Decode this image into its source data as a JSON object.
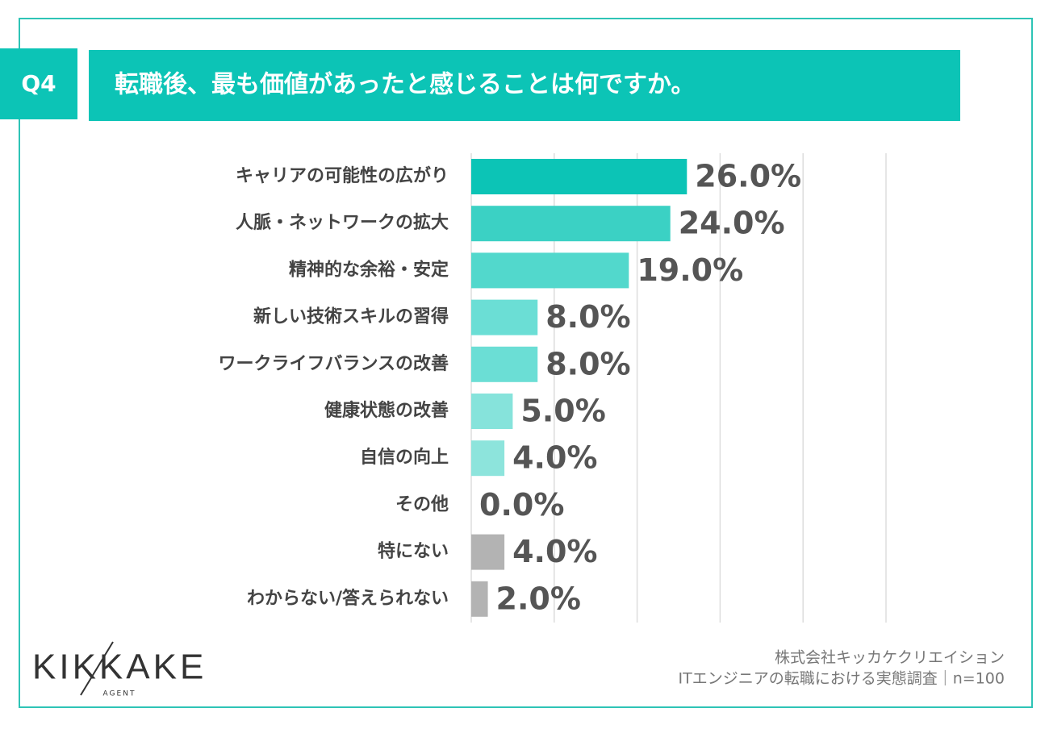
{
  "header": {
    "badge": "Q4",
    "title": "転職後、最も価値があったと感じることは何ですか。"
  },
  "chart_data": {
    "type": "bar",
    "orientation": "horizontal",
    "categories": [
      "キャリアの可能性の広がり",
      "人脈・ネットワークの拡大",
      "精神的な余裕・安定",
      "新しい技術スキルの習得",
      "ワークライフバランスの改善",
      "健康状態の改善",
      "自信の向上",
      "その他",
      "特にない",
      "わからない/答えられない"
    ],
    "values": [
      26.0,
      24.0,
      19.0,
      8.0,
      8.0,
      5.0,
      4.0,
      0.0,
      4.0,
      2.0
    ],
    "value_labels": [
      "26.0%",
      "24.0%",
      "19.0%",
      "8.0%",
      "8.0%",
      "5.0%",
      "4.0%",
      "0.0%",
      "4.0%",
      "2.0%"
    ],
    "colors": [
      "#0cc4b6",
      "#3bd1c4",
      "#52d8cc",
      "#6bded5",
      "#6bded5",
      "#86e3db",
      "#8de4dc",
      "#8de4dc",
      "#b3b3b3",
      "#b3b3b3"
    ],
    "xlim": [
      0,
      50
    ],
    "xticks": [
      0,
      10,
      20,
      30,
      40,
      50
    ],
    "grid": true
  },
  "footer": {
    "logo": "KIKKAKE",
    "logo_sub": "AGENT",
    "company": "株式会社キッカケクリエイション",
    "survey": "ITエンジニアの転職における実態調査｜n=100"
  }
}
